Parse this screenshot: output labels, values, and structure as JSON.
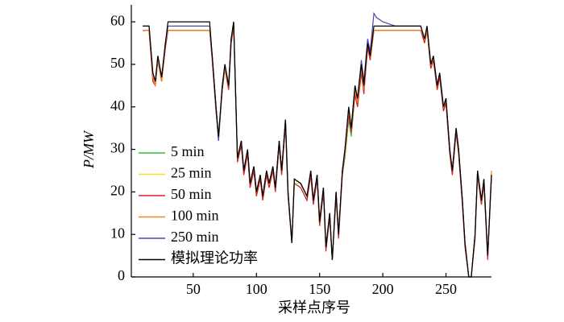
{
  "chart_data": {
    "type": "line",
    "xlabel": "采样点序号",
    "ylabel": "P/MW",
    "xlim": [
      1,
      286
    ],
    "ylim": [
      0,
      64
    ],
    "xticks": [
      50,
      100,
      150,
      200,
      250
    ],
    "yticks": [
      0,
      10,
      20,
      30,
      40,
      50,
      60
    ],
    "legend": "lower left",
    "x": [
      10,
      15,
      18,
      20,
      22,
      25,
      28,
      30,
      40,
      50,
      63,
      65,
      68,
      70,
      73,
      75,
      78,
      80,
      82,
      85,
      88,
      90,
      93,
      95,
      98,
      100,
      103,
      105,
      108,
      110,
      113,
      115,
      118,
      120,
      123,
      125,
      128,
      130,
      135,
      140,
      143,
      145,
      148,
      150,
      153,
      155,
      158,
      160,
      163,
      165,
      168,
      170,
      173,
      175,
      178,
      180,
      183,
      185,
      188,
      190,
      193,
      195,
      200,
      210,
      220,
      230,
      233,
      235,
      238,
      240,
      243,
      245,
      248,
      250,
      253,
      255,
      258,
      260,
      263,
      265,
      268,
      270,
      273,
      275,
      278,
      280,
      283,
      286
    ],
    "series": [
      {
        "name": "5 min",
        "color": "#3cb83c",
        "values": [
          58,
          58,
          47,
          45,
          51,
          46,
          54,
          58,
          58,
          58,
          58,
          51,
          39,
          32,
          44,
          49,
          44,
          55,
          59,
          27,
          31,
          24,
          29,
          21,
          25,
          19,
          23,
          18,
          24,
          21,
          25,
          20,
          31,
          24,
          36,
          19,
          8,
          22,
          21,
          18,
          24,
          17,
          23,
          12,
          20,
          7,
          14,
          4,
          19,
          10,
          24,
          28,
          37,
          33,
          43,
          40,
          48,
          44,
          54,
          51,
          58,
          58,
          58,
          58,
          58,
          58,
          55,
          58,
          49,
          51,
          44,
          47,
          39,
          41,
          29,
          24,
          34,
          29,
          17,
          8,
          0,
          0,
          10,
          24,
          17,
          22,
          5,
          24
        ]
      },
      {
        "name": "25 min",
        "color": "#f2e030",
        "values": [
          58,
          58,
          47,
          46,
          51,
          47,
          55,
          58,
          58,
          58,
          58,
          52,
          40,
          33,
          45,
          50,
          45,
          56,
          59,
          28,
          31,
          25,
          30,
          22,
          25,
          20,
          24,
          19,
          25,
          22,
          25,
          21,
          32,
          25,
          36,
          20,
          8,
          22,
          22,
          19,
          24,
          18,
          23,
          13,
          21,
          7,
          15,
          4,
          20,
          10,
          24,
          29,
          38,
          34,
          44,
          41,
          49,
          44,
          54,
          51,
          58,
          58,
          58,
          58,
          58,
          58,
          56,
          58,
          50,
          51,
          45,
          47,
          40,
          41,
          30,
          25,
          34,
          30,
          18,
          8,
          0,
          0,
          10,
          25,
          18,
          23,
          5,
          24
        ]
      },
      {
        "name": "50 min",
        "color": "#e02020",
        "values": [
          58,
          58,
          46,
          45,
          51,
          46,
          54,
          58,
          58,
          58,
          58,
          51,
          39,
          33,
          44,
          49,
          44,
          55,
          59,
          27,
          31,
          24,
          29,
          21,
          25,
          19,
          23,
          18,
          24,
          21,
          25,
          20,
          31,
          24,
          36,
          19,
          8,
          22,
          21,
          18,
          24,
          17,
          23,
          12,
          20,
          6,
          14,
          4,
          19,
          9,
          24,
          29,
          38,
          34,
          43,
          40,
          48,
          43,
          54,
          51,
          58,
          58,
          58,
          58,
          58,
          58,
          55,
          58,
          49,
          51,
          44,
          47,
          39,
          41,
          29,
          24,
          34,
          29,
          17,
          7,
          0,
          0,
          9,
          24,
          17,
          22,
          4,
          24
        ]
      },
      {
        "name": "100 min",
        "color": "#f08020",
        "values": [
          58,
          58,
          47,
          45,
          51,
          46,
          55,
          58,
          58,
          58,
          58,
          52,
          40,
          33,
          45,
          49,
          45,
          56,
          59,
          28,
          32,
          25,
          30,
          22,
          26,
          20,
          24,
          19,
          25,
          22,
          26,
          21,
          32,
          25,
          37,
          20,
          8,
          23,
          22,
          19,
          25,
          18,
          24,
          13,
          21,
          7,
          15,
          4,
          20,
          10,
          25,
          29,
          39,
          35,
          44,
          41,
          49,
          44,
          55,
          52,
          58,
          58,
          58,
          58,
          58,
          58,
          56,
          58,
          50,
          52,
          45,
          48,
          40,
          42,
          30,
          25,
          35,
          30,
          18,
          8,
          0,
          0,
          10,
          25,
          18,
          23,
          5,
          25
        ]
      },
      {
        "name": "250 min",
        "color": "#4848a8",
        "values": [
          59,
          59,
          48,
          46,
          52,
          47,
          55,
          59,
          59,
          59,
          59,
          52,
          40,
          32,
          45,
          50,
          45,
          56,
          60,
          28,
          32,
          25,
          30,
          22,
          26,
          20,
          24,
          19,
          25,
          22,
          26,
          21,
          32,
          25,
          37,
          20,
          8,
          23,
          22,
          19,
          25,
          18,
          24,
          13,
          21,
          7,
          15,
          4,
          20,
          10,
          25,
          30,
          40,
          35,
          45,
          42,
          51,
          46,
          56,
          53,
          62,
          61,
          60,
          59,
          59,
          59,
          56,
          59,
          50,
          52,
          45,
          48,
          40,
          42,
          30,
          25,
          35,
          30,
          18,
          8,
          0,
          0,
          10,
          25,
          18,
          23,
          5,
          24
        ]
      },
      {
        "name": "模拟理论功率",
        "color": "#000000",
        "values": [
          59,
          59,
          48,
          46,
          52,
          47,
          55,
          60,
          60,
          60,
          60,
          52,
          40,
          33,
          45,
          50,
          45,
          56,
          60,
          28,
          32,
          25,
          30,
          22,
          26,
          20,
          24,
          19,
          25,
          22,
          26,
          21,
          32,
          25,
          37,
          20,
          8,
          23,
          22,
          19,
          25,
          18,
          24,
          13,
          21,
          7,
          15,
          4,
          20,
          10,
          25,
          30,
          40,
          35,
          45,
          42,
          50,
          45,
          55,
          52,
          59,
          59,
          59,
          59,
          59,
          59,
          56,
          59,
          50,
          52,
          45,
          48,
          40,
          42,
          30,
          25,
          35,
          30,
          18,
          8,
          0,
          0,
          10,
          25,
          18,
          23,
          5,
          24
        ]
      }
    ]
  }
}
